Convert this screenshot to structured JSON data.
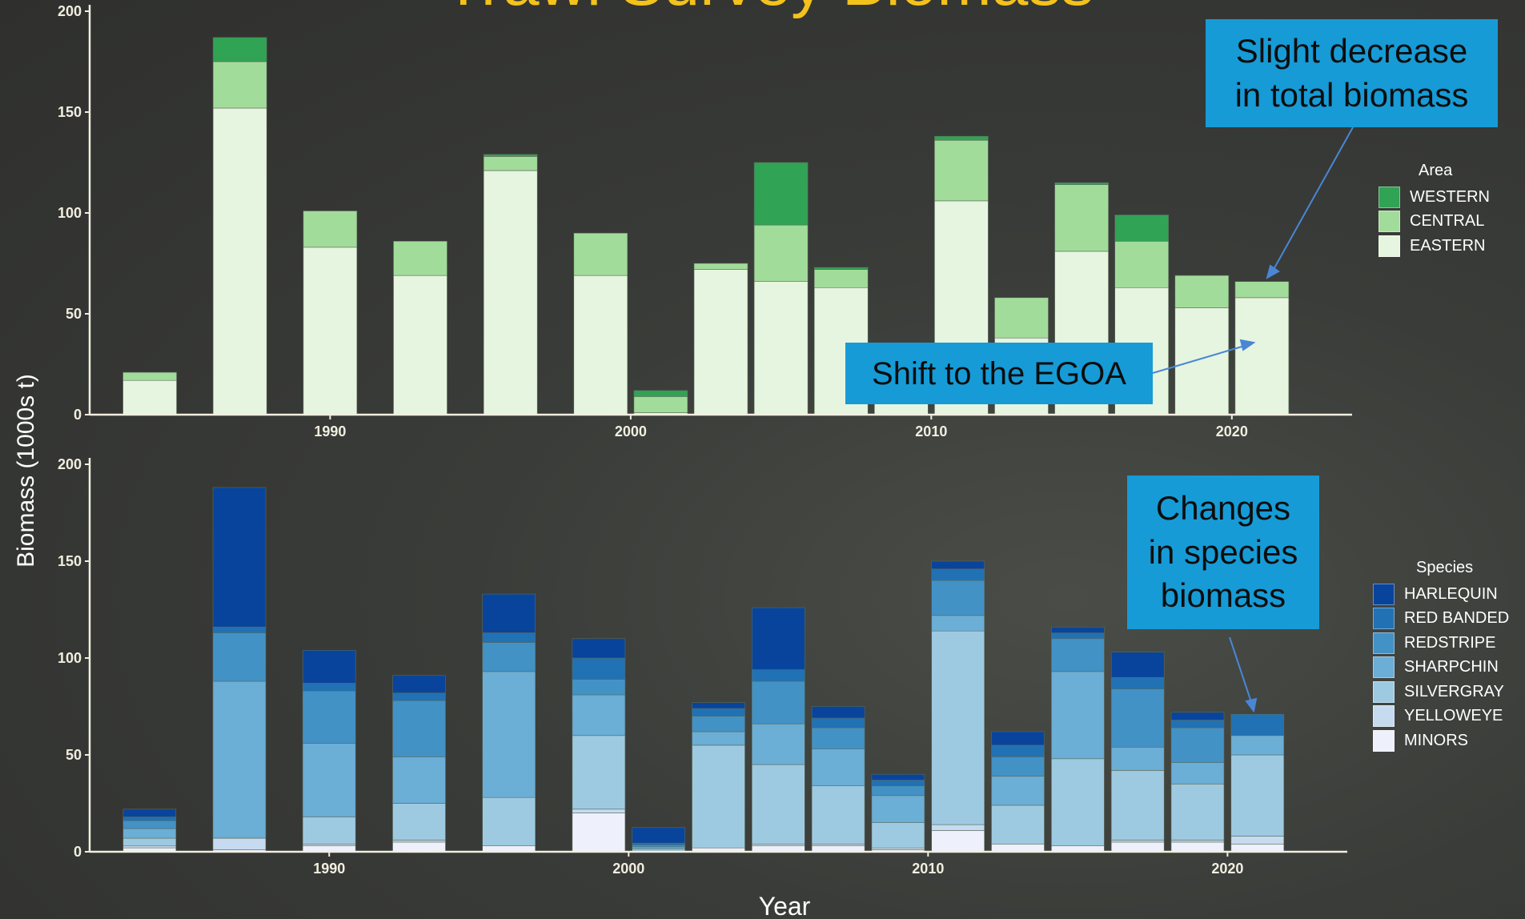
{
  "title": "Trawl Survey Biomass",
  "title_color": "#f3c21b",
  "xlabel": "Year",
  "ylabel": "Biomass (1000s t)",
  "callouts": {
    "top_right": [
      "Slight decrease",
      "in total biomass"
    ],
    "middle": "Shift to the EGOA",
    "bottom_right": [
      "Changes",
      "in species",
      "biomass"
    ]
  },
  "chart_data": [
    {
      "type": "bar",
      "stacked": true,
      "x": [
        1984,
        1987,
        1990,
        1993,
        1996,
        1999,
        2001,
        2003,
        2005,
        2007,
        2009,
        2011,
        2013,
        2015,
        2017,
        2019,
        2021
      ],
      "series": [
        {
          "name": "EASTERN",
          "color": "#e6f5df",
          "values": [
            17,
            152,
            83,
            69,
            121,
            69,
            1,
            72,
            66,
            63,
            35,
            106,
            38,
            81,
            63,
            53,
            58
          ]
        },
        {
          "name": "CENTRAL",
          "color": "#a2dc9a",
          "values": [
            4,
            23,
            18,
            17,
            7,
            21,
            8,
            3,
            28,
            9,
            0,
            30,
            20,
            33,
            23,
            16,
            8
          ]
        },
        {
          "name": "WESTERN",
          "color": "#31a354",
          "values": [
            0,
            12,
            0,
            0,
            1,
            0,
            3,
            0,
            31,
            1,
            0,
            2,
            0,
            1,
            13,
            0,
            0
          ]
        }
      ],
      "legend_title": "Area",
      "ylim": [
        0,
        200
      ],
      "yticks": [
        0,
        50,
        100,
        150,
        200
      ],
      "xticks": [
        1990,
        2000,
        2010,
        2020
      ],
      "xlim": [
        1982,
        2024
      ],
      "grid": false
    },
    {
      "type": "bar",
      "stacked": true,
      "x": [
        1984,
        1987,
        1990,
        1993,
        1996,
        1999,
        2001,
        2003,
        2005,
        2007,
        2009,
        2011,
        2013,
        2015,
        2017,
        2019,
        2021
      ],
      "series": [
        {
          "name": "MINORS",
          "color": "#eef1fb",
          "values": [
            2,
            1,
            3,
            5,
            3,
            20,
            0.5,
            2,
            3,
            3,
            1,
            11,
            4,
            3,
            5,
            5,
            4
          ]
        },
        {
          "name": "YELLOWEYE",
          "color": "#c6dbef",
          "values": [
            1,
            6,
            1,
            1,
            0,
            2,
            0,
            0,
            1,
            1,
            1,
            3,
            0,
            0,
            1,
            1,
            4
          ]
        },
        {
          "name": "SILVERGRAY",
          "color": "#9ecae1",
          "values": [
            4,
            0,
            14,
            19,
            25,
            38,
            1,
            53,
            41,
            30,
            13,
            100,
            20,
            45,
            36,
            29,
            42
          ]
        },
        {
          "name": "SHARPCHIN",
          "color": "#6baed6",
          "values": [
            5,
            81,
            38,
            24,
            65,
            21,
            1,
            7,
            21,
            19,
            14,
            8,
            15,
            45,
            12,
            11,
            10
          ]
        },
        {
          "name": "REDSTRIPE",
          "color": "#4292c6",
          "values": [
            4,
            25,
            27,
            29,
            15,
            8,
            1,
            8,
            22,
            11,
            5,
            18,
            10,
            17,
            30,
            18,
            0
          ]
        },
        {
          "name": "RED BANDED",
          "color": "#2171b5",
          "values": [
            2,
            3,
            4,
            4,
            5,
            11,
            1,
            4,
            6,
            5,
            3,
            6,
            6,
            3,
            6,
            4,
            11
          ]
        },
        {
          "name": "HARLEQUIN",
          "color": "#08449c",
          "values": [
            4,
            72,
            17,
            9,
            20,
            10,
            8,
            3,
            32,
            6,
            3,
            4,
            7,
            3,
            13,
            4,
            0
          ]
        }
      ],
      "legend_title": "Species",
      "ylim": [
        0,
        200
      ],
      "yticks": [
        0,
        50,
        100,
        150,
        200
      ],
      "xticks": [
        1990,
        2000,
        2010,
        2020
      ],
      "xlim": [
        1982,
        2024
      ],
      "grid": false
    }
  ]
}
